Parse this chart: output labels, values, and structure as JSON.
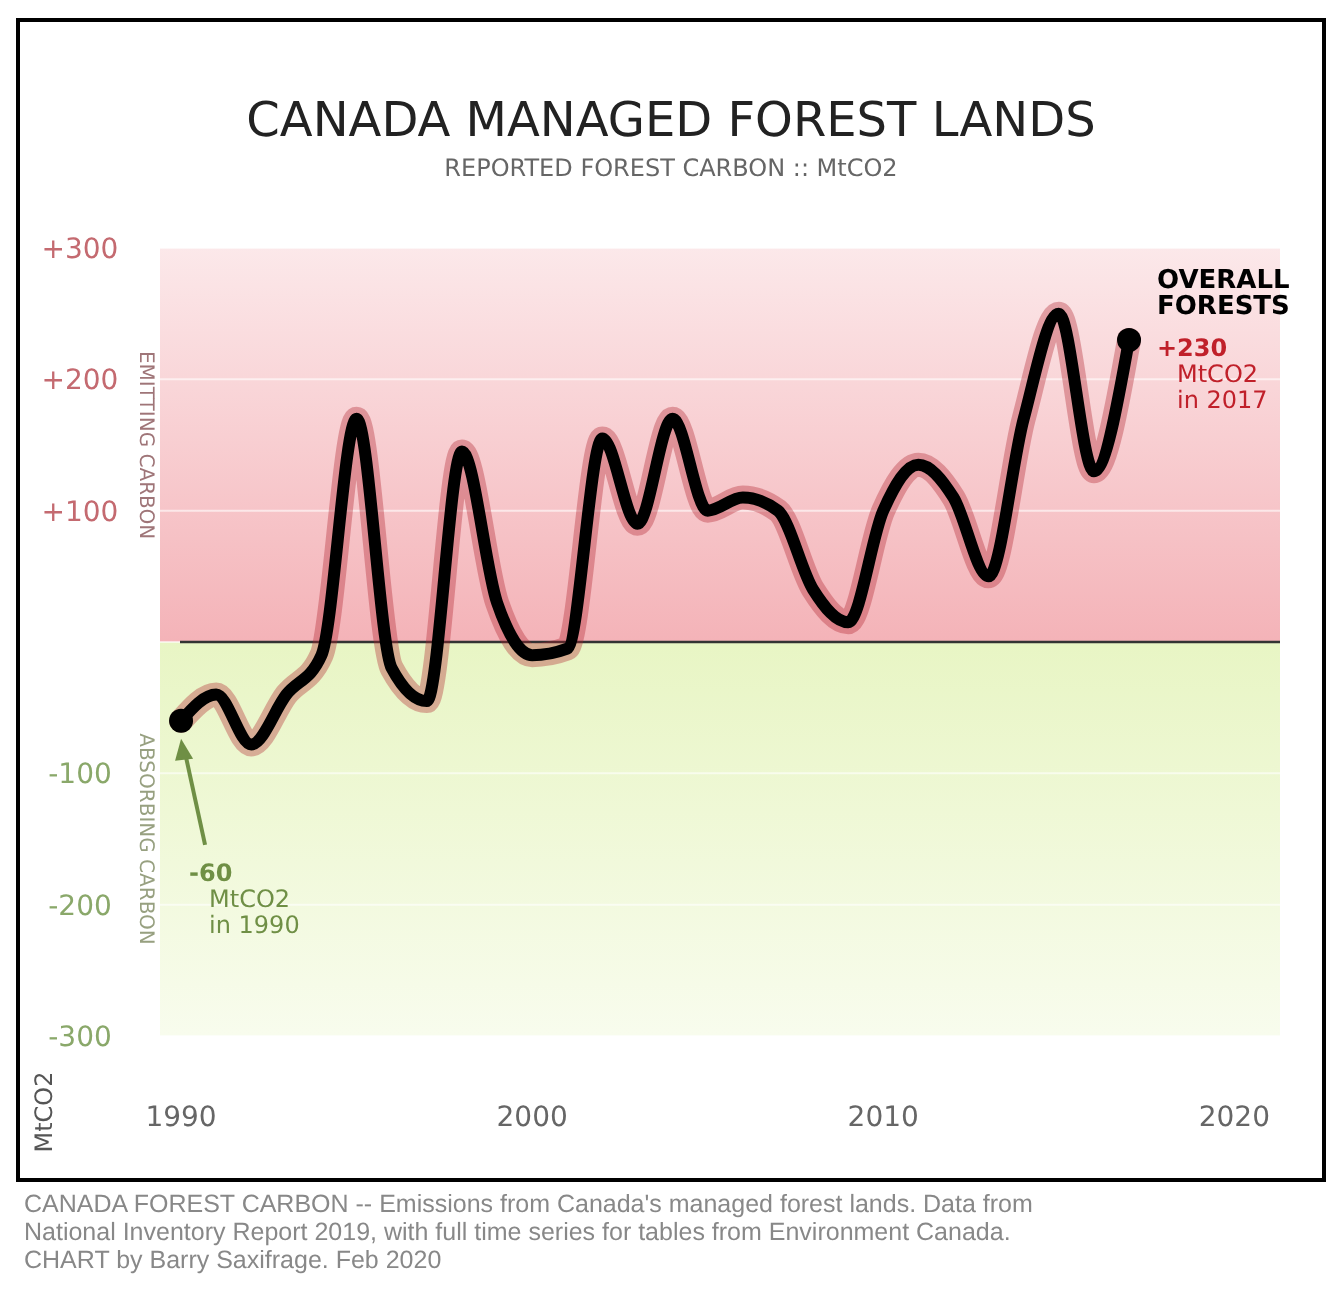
{
  "chart_data": {
    "type": "line",
    "title": "CANADA MANAGED FOREST LANDS",
    "subtitle": "REPORTED FOREST CARBON :: MtCO2",
    "ylabel": "MtCO2",
    "x": [
      1990,
      1991,
      1992,
      1993,
      1994,
      1995,
      1996,
      1997,
      1998,
      1999,
      2000,
      2001,
      2002,
      2003,
      2004,
      2005,
      2006,
      2007,
      2008,
      2009,
      2010,
      2011,
      2012,
      2013,
      2014,
      2015,
      2016,
      2017
    ],
    "series": [
      {
        "name": "OVERALL FORESTS",
        "color": "#000000",
        "values": [
          -60,
          -40,
          -78,
          -40,
          -10,
          170,
          -20,
          -45,
          145,
          30,
          -10,
          -5,
          155,
          90,
          170,
          100,
          110,
          100,
          40,
          15,
          100,
          135,
          110,
          50,
          170,
          250,
          130,
          230
        ]
      }
    ],
    "xlim": [
      1989.4,
      2021.3
    ],
    "xticks": [
      1990,
      2000,
      2010,
      2020
    ],
    "ylim": [
      -300,
      300
    ],
    "yticks": [
      {
        "value": 300,
        "label": "+300"
      },
      {
        "value": 200,
        "label": "+200"
      },
      {
        "value": 100,
        "label": "+100"
      },
      {
        "value": 0,
        "label": null
      },
      {
        "value": -100,
        "label": "-100"
      },
      {
        "value": -200,
        "label": "-200"
      },
      {
        "value": -300,
        "label": "-300"
      }
    ],
    "grid": "y",
    "marker": "none",
    "line_style": "solid",
    "ref_lines": [
      {
        "axis": "y",
        "value": 0,
        "color": "#333333"
      }
    ],
    "bands": [
      {
        "axis": "y",
        "from": 0,
        "to": 300,
        "label": "EMITTING CARBON",
        "color": "#f4b3b8"
      },
      {
        "axis": "y",
        "from": -300,
        "to": 0,
        "label": "ABSORBING CARBON",
        "color": "#e8f5c4"
      }
    ],
    "annotations": [
      "-60\nMtCO2\nin 1990",
      "+230\nMtCO2\nin 2017",
      "CANADA FOREST CARBON -- Emissions from Canada's managed forest lands. Data from",
      "National Inventory Report 2019, with full time series for tables from Environment Canada.",
      "CHART by Barry Saxifrage. Feb 2020"
    ]
  }
}
